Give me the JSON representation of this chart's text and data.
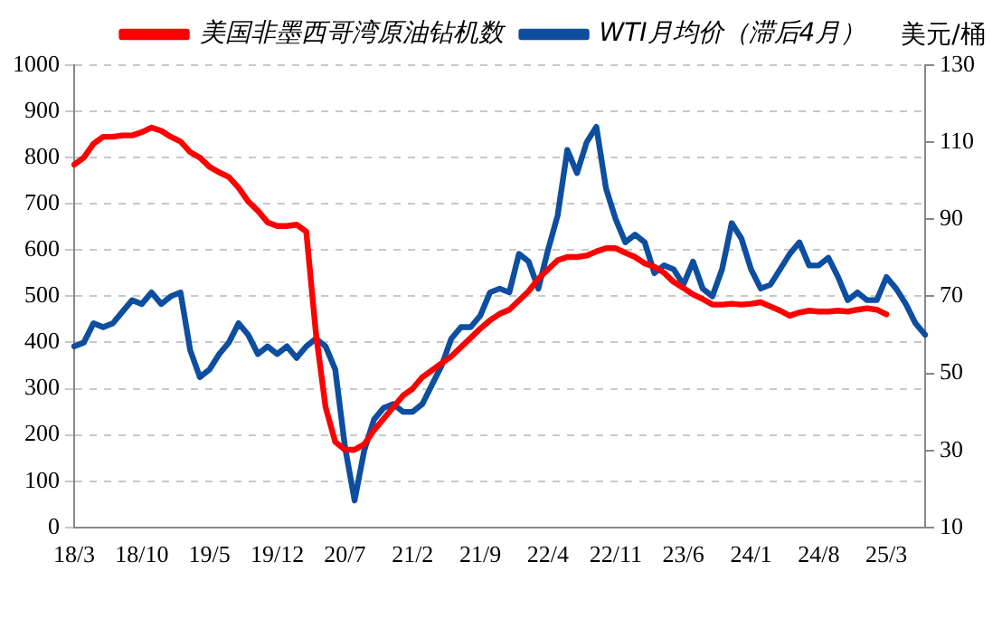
{
  "chart_data": {
    "type": "line",
    "y2label": "美元/桶",
    "categories": [
      "18/3",
      null,
      null,
      null,
      null,
      null,
      null,
      "18/10",
      null,
      null,
      null,
      null,
      null,
      null,
      "19/5",
      null,
      null,
      null,
      null,
      null,
      null,
      "19/12",
      null,
      null,
      null,
      null,
      null,
      null,
      "20/7",
      null,
      null,
      null,
      null,
      null,
      null,
      "21/2",
      null,
      null,
      null,
      null,
      null,
      null,
      "21/9",
      null,
      null,
      null,
      null,
      null,
      null,
      "22/4",
      null,
      null,
      null,
      null,
      null,
      null,
      "22/11",
      null,
      null,
      null,
      null,
      null,
      null,
      "23/6",
      null,
      null,
      null,
      null,
      null,
      null,
      "24/1",
      null,
      null,
      null,
      null,
      null,
      null,
      "24/8",
      null,
      null,
      null,
      null,
      null,
      null,
      "25/3",
      null,
      null,
      null,
      null
    ],
    "series": [
      {
        "name": "美国非墨西哥湾原油钻机数",
        "color": "#ff0000",
        "values": [
          785,
          800,
          830,
          845,
          845,
          848,
          848,
          855,
          865,
          858,
          845,
          835,
          812,
          800,
          780,
          768,
          758,
          735,
          705,
          685,
          660,
          652,
          652,
          655,
          640,
          420,
          260,
          185,
          168,
          168,
          180,
          210,
          235,
          260,
          285,
          300,
          325,
          340,
          355,
          370,
          390,
          410,
          430,
          448,
          462,
          471,
          491,
          511,
          538,
          558,
          578,
          585,
          585,
          588,
          597,
          604,
          604,
          594,
          585,
          571,
          564,
          551,
          531,
          518,
          504,
          494,
          482,
          482,
          484,
          482,
          484,
          487,
          478,
          469,
          458,
          465,
          469,
          467,
          467,
          469,
          467,
          471,
          474,
          471,
          461,
          null,
          null,
          null,
          null
        ]
      },
      {
        "name": "WTI月均价（滞后4月）",
        "color": "#0d4ea0",
        "axis": "y2",
        "values": [
          57,
          58,
          63,
          62,
          63,
          66,
          69,
          68,
          71,
          68,
          70,
          71,
          56,
          49,
          51,
          55,
          58,
          63,
          60,
          55,
          57,
          55,
          57,
          54,
          57,
          59,
          57,
          51,
          31,
          17,
          30,
          38,
          41,
          42,
          40,
          40,
          42,
          47,
          52,
          59,
          62,
          62,
          65,
          71,
          72,
          71,
          81,
          79,
          72,
          82,
          91,
          108,
          102,
          110,
          114,
          98,
          90,
          84,
          86,
          84,
          76,
          78,
          77,
          73,
          79,
          72,
          70,
          77,
          89,
          85,
          77,
          72,
          73,
          77,
          81,
          84,
          78,
          78,
          80,
          75,
          69,
          71,
          69,
          69,
          75,
          72,
          68,
          63,
          60
        ]
      }
    ],
    "ylim": [
      0,
      1000
    ],
    "yticks": [
      0,
      100,
      200,
      300,
      400,
      500,
      600,
      700,
      800,
      900,
      1000
    ],
    "y2lim": [
      10,
      130
    ],
    "y2ticks": [
      10,
      30,
      50,
      70,
      90,
      110,
      130
    ],
    "grid": "y",
    "legend": "top",
    "marker": "none",
    "line_style": "solid"
  }
}
